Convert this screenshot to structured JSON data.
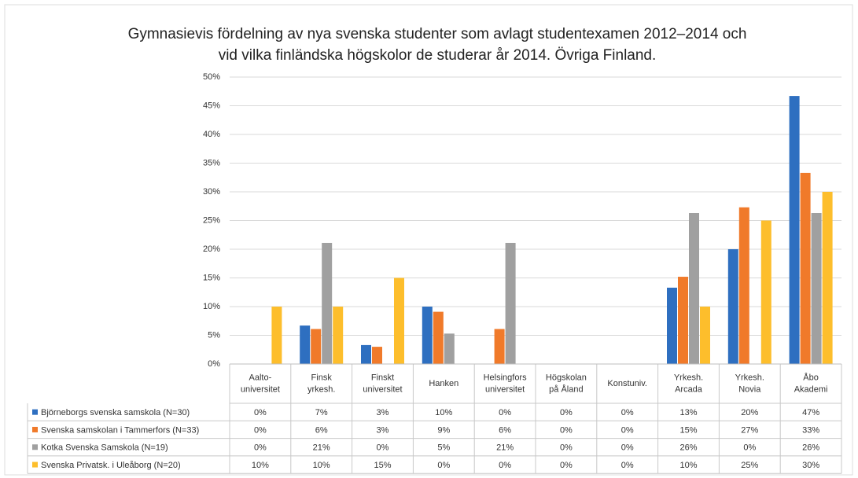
{
  "chart_data": {
    "type": "bar",
    "title": [
      "Gymnasievis fördelning av nya svenska studenter som avlagt studentexamen 2012–2014 och",
      "vid vilka finländska högskolor de studerar år 2014. Övriga Finland."
    ],
    "categories": [
      [
        "Aalto-",
        "universitet"
      ],
      [
        "Finsk",
        "yrkesh."
      ],
      [
        "Finskt",
        "universitet"
      ],
      [
        "Hanken"
      ],
      [
        "Helsingfors",
        "universitet"
      ],
      [
        "Högskolan",
        "på Åland"
      ],
      [
        "Konstuniv."
      ],
      [
        "Yrkesh.",
        "Arcada"
      ],
      [
        "Yrkesh.",
        "Novia"
      ],
      [
        "Åbo",
        "Akademi"
      ]
    ],
    "series": [
      {
        "name": "Björneborgs svenska samskola (N=30)",
        "color": "#2e6fc0",
        "values": [
          0,
          6.7,
          3.3,
          10,
          0,
          0,
          0,
          13.3,
          20,
          46.7
        ],
        "value_labels": [
          "0%",
          "7%",
          "3%",
          "10%",
          "0%",
          "0%",
          "0%",
          "13%",
          "20%",
          "47%"
        ]
      },
      {
        "name": "Svenska samskolan i Tammerfors (N=33)",
        "color": "#f07a2a",
        "values": [
          0,
          6.1,
          3.0,
          9.1,
          6.1,
          0,
          0,
          15.2,
          27.3,
          33.3
        ],
        "value_labels": [
          "0%",
          "6%",
          "3%",
          "9%",
          "6%",
          "0%",
          "0%",
          "15%",
          "27%",
          "33%"
        ]
      },
      {
        "name": "Kotka Svenska Samskola (N=19)",
        "color": "#a0a0a0",
        "values": [
          0,
          21.1,
          0,
          5.3,
          21.1,
          0,
          0,
          26.3,
          0,
          26.3
        ],
        "value_labels": [
          "0%",
          "21%",
          "0%",
          "5%",
          "21%",
          "0%",
          "0%",
          "26%",
          "0%",
          "26%"
        ]
      },
      {
        "name": "Svenska Privatsk. i Uleåborg (N=20)",
        "color": "#fdbe2c",
        "values": [
          10,
          10,
          15,
          0,
          0,
          0,
          0,
          10,
          25,
          30
        ],
        "value_labels": [
          "10%",
          "10%",
          "15%",
          "0%",
          "0%",
          "0%",
          "0%",
          "10%",
          "25%",
          "30%"
        ]
      }
    ],
    "ylim": [
      0,
      50
    ],
    "yticks": [
      {
        "value": 0,
        "label": "0%"
      },
      {
        "value": 5,
        "label": "5%"
      },
      {
        "value": 10,
        "label": "10%"
      },
      {
        "value": 15,
        "label": "15%"
      },
      {
        "value": 20,
        "label": "20%"
      },
      {
        "value": 25,
        "label": "25%"
      },
      {
        "value": 30,
        "label": "30%"
      },
      {
        "value": 35,
        "label": "35%"
      },
      {
        "value": 40,
        "label": "40%"
      },
      {
        "value": 45,
        "label": "45%"
      },
      {
        "value": 50,
        "label": "50%"
      }
    ],
    "grid": true
  }
}
